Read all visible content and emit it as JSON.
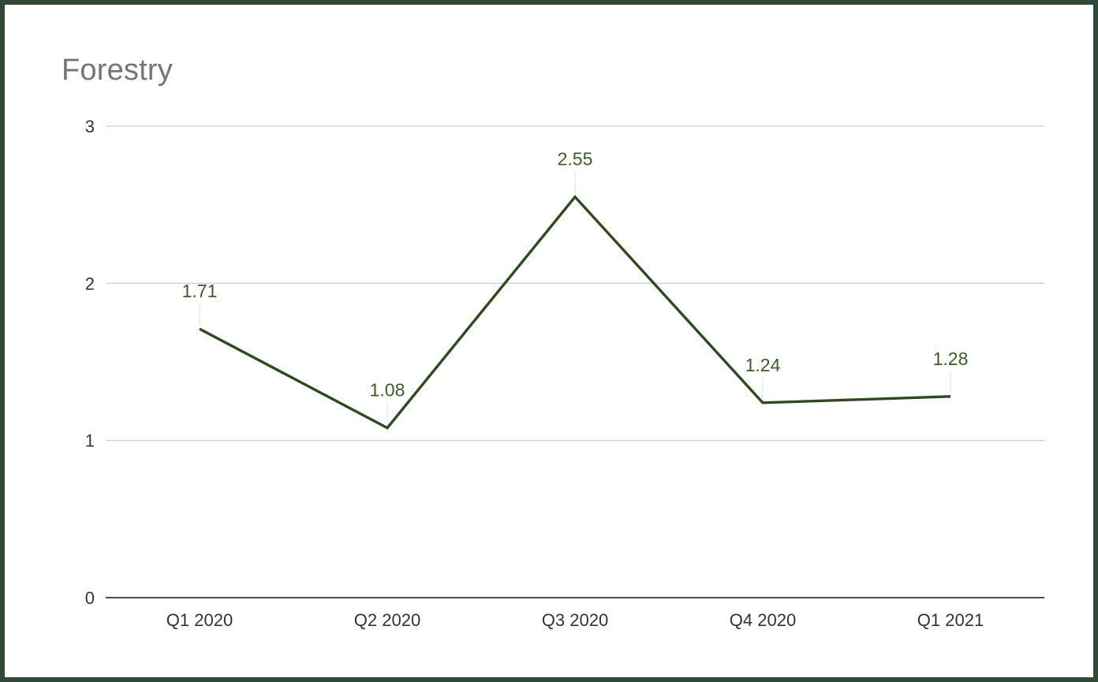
{
  "chart_data": {
    "type": "line",
    "title": "Forestry",
    "xlabel": "",
    "ylabel": "",
    "categories": [
      "Q1 2020",
      "Q2 2020",
      "Q3 2020",
      "Q4 2020",
      "Q1 2021"
    ],
    "series": [
      {
        "values": [
          1.71,
          1.08,
          2.55,
          1.24,
          1.28
        ],
        "data_labels": [
          "1.71",
          "1.08",
          "2.55",
          "1.24",
          "1.28"
        ],
        "color": "#2e4a1f"
      }
    ],
    "ylim": [
      0,
      3
    ],
    "yticks": [
      0,
      1,
      2,
      3
    ],
    "ytick_labels": [
      "0",
      "1",
      "2",
      "3"
    ],
    "grid": true,
    "legend": "none",
    "colors": {
      "frame": "#2f4a36",
      "gridline": "#d0d0d0",
      "axis": "#333333",
      "title": "#757575",
      "data_label": "#3e5c2a"
    }
  }
}
